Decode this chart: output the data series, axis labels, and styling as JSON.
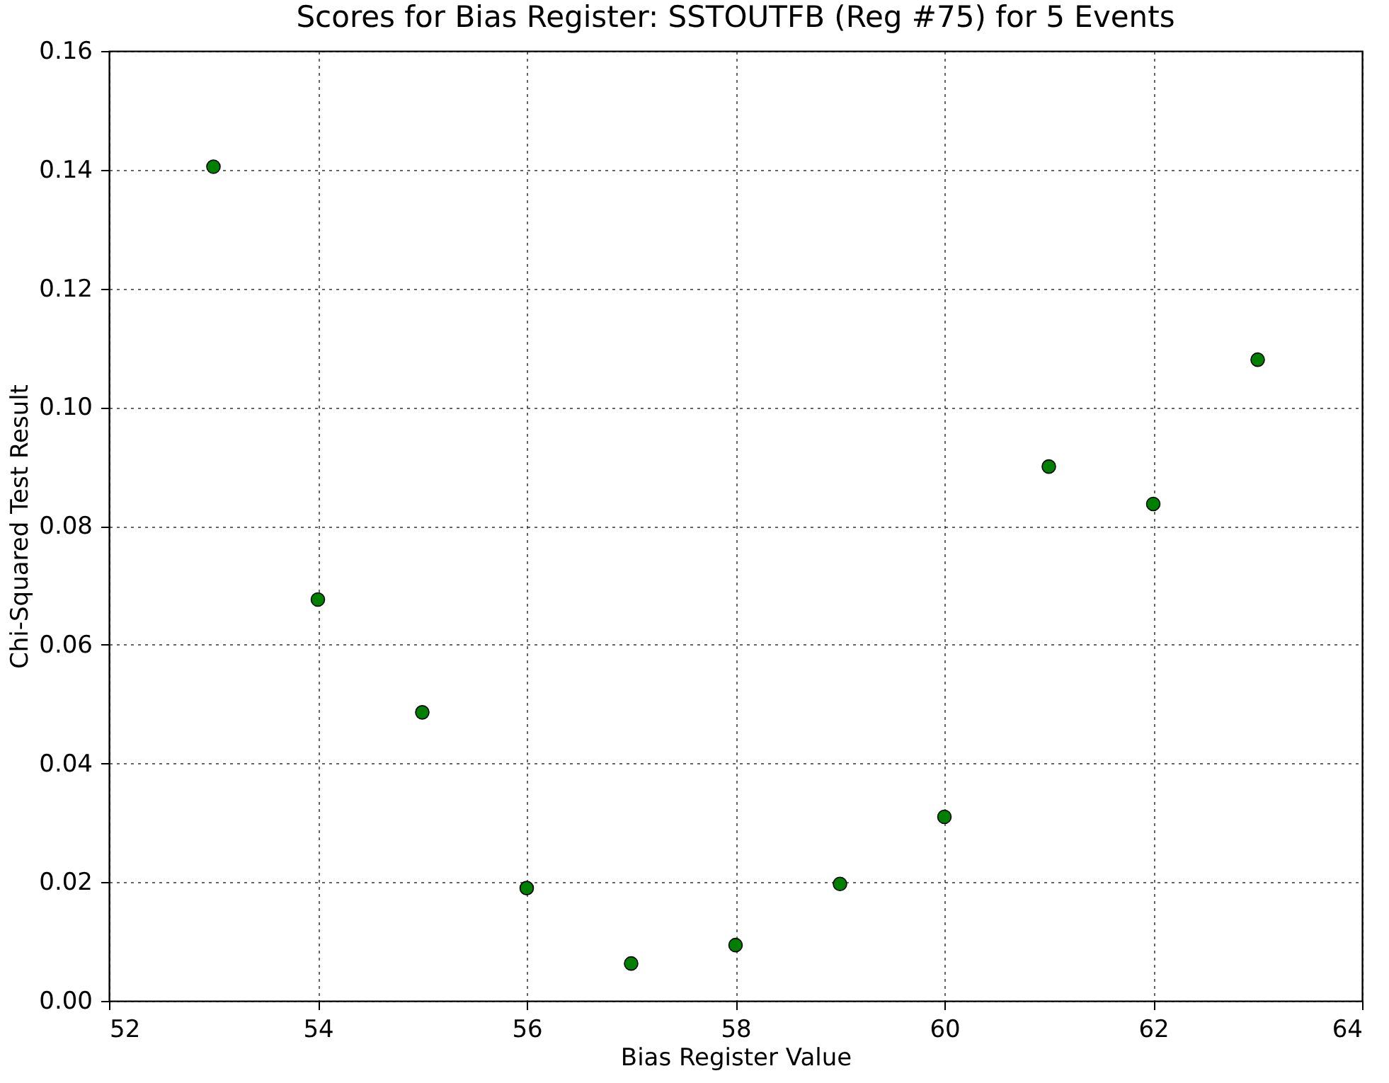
{
  "chart_data": {
    "type": "scatter",
    "title": "Scores for Bias Register: SSTOUTFB (Reg #75) for 5 Events",
    "xlabel": "Bias Register Value",
    "ylabel": "Chi-Squared Test Result",
    "x": [
      53,
      54,
      55,
      56,
      57,
      58,
      59,
      60,
      61,
      62,
      63
    ],
    "series": [
      {
        "color": "#007f00",
        "values": [
          0.1405,
          0.0676,
          0.0486,
          0.019,
          0.0063,
          0.0094,
          0.0197,
          0.031,
          0.09,
          0.0837,
          0.108
        ]
      }
    ],
    "xlim": [
      52,
      64
    ],
    "xticks": [
      52,
      54,
      56,
      58,
      60,
      62,
      64
    ],
    "ylim": [
      0,
      0.16
    ],
    "yticks": [
      {
        "value": 0,
        "label": "0.00"
      },
      {
        "value": 0.02,
        "label": "0.02"
      },
      {
        "value": 0.04,
        "label": "0.04"
      },
      {
        "value": 0.06,
        "label": "0.06"
      },
      {
        "value": 0.08,
        "label": "0.08"
      },
      {
        "value": 0.1,
        "label": "0.10"
      },
      {
        "value": 0.12,
        "label": "0.12"
      },
      {
        "value": 0.14,
        "label": "0.14"
      },
      {
        "value": 0.16,
        "label": "0.16"
      }
    ],
    "grid": true,
    "marker": "circle"
  }
}
